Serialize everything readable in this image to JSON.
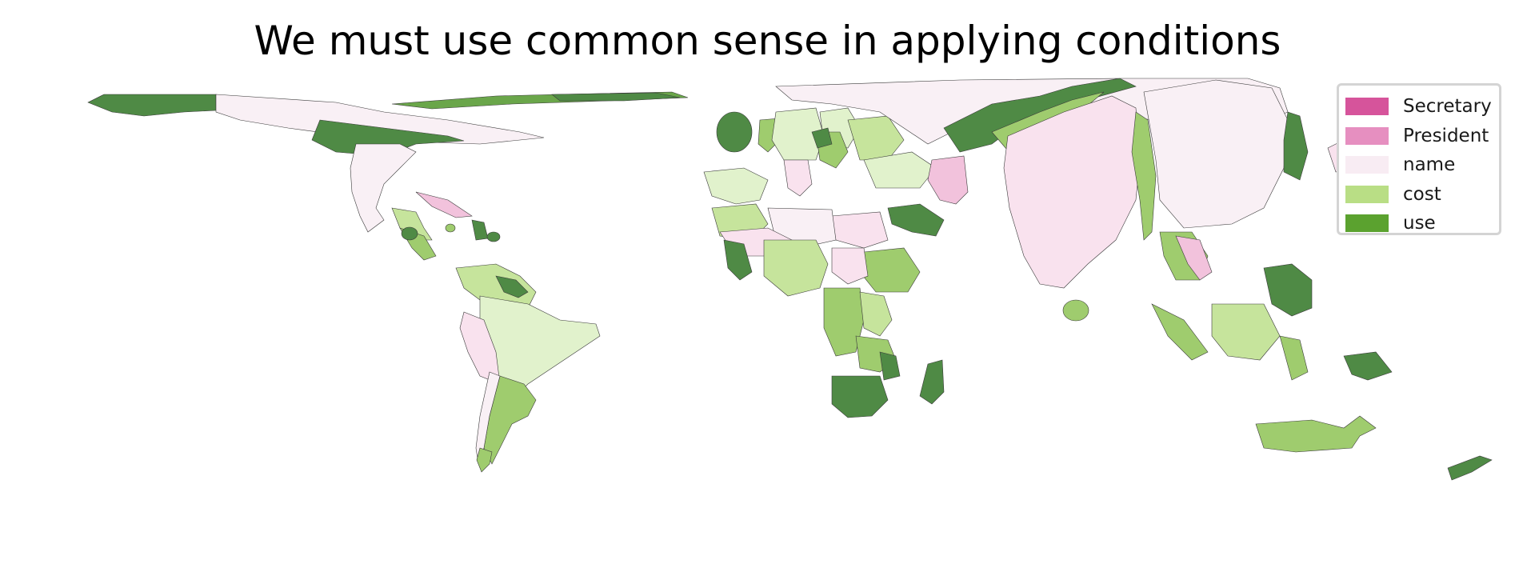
{
  "title": "We must use common sense in applying conditions",
  "legend": {
    "items": [
      {
        "label": "Secretary",
        "color": "#d6549b"
      },
      {
        "label": "President",
        "color": "#e68fc0"
      },
      {
        "label": "name",
        "color": "#f8ecf3"
      },
      {
        "label": "cost",
        "color": "#b9de85"
      },
      {
        "label": "use",
        "color": "#5ba22f"
      }
    ],
    "placement": "top-right"
  },
  "palette": {
    "use_dark": "#4f8a45",
    "cost_mid": "#9fcc6e",
    "cost_light": "#c6e49c",
    "cost_pale": "#e1f2cc",
    "name_pink": "#f9e2ee",
    "name_pale": "#f9f0f5",
    "president": "#f2c2dc"
  }
}
